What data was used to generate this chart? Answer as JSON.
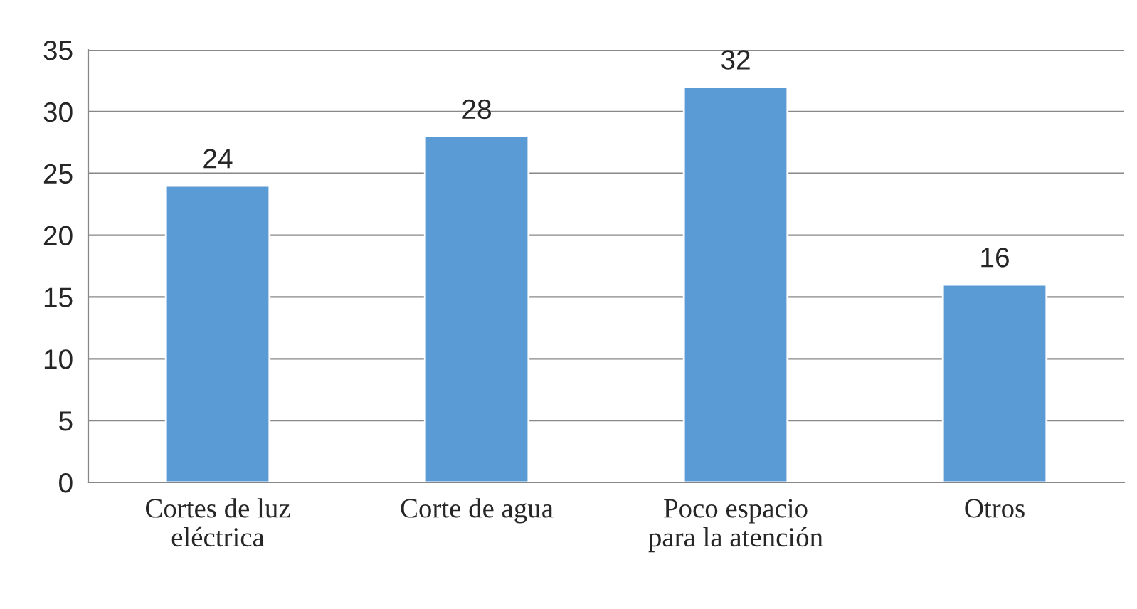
{
  "chart_data": {
    "type": "bar",
    "categories": [
      "Cortes de luz\neléctrica",
      "Corte de agua",
      "Poco espacio\npara la atención",
      "Otros"
    ],
    "values": [
      24,
      28,
      32,
      16
    ],
    "color": "#5b9bd5",
    "ylim": [
      0,
      35
    ],
    "yticks": [
      0,
      5,
      10,
      15,
      20,
      25,
      30,
      35
    ],
    "grid": "y",
    "data_labels": true,
    "legend": false
  }
}
